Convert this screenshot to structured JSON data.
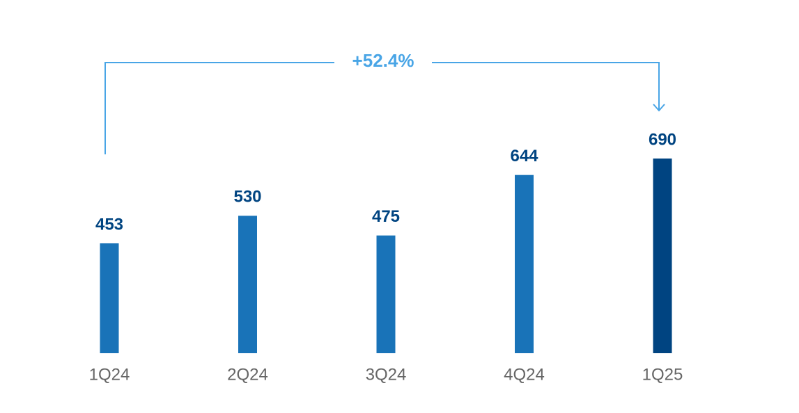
{
  "chart_data": {
    "type": "bar",
    "annotation": "+52.4%",
    "categories": [
      "1Q24",
      "2Q24",
      "3Q24",
      "4Q24",
      "1Q25"
    ],
    "values": [
      453,
      530,
      475,
      644,
      690
    ],
    "colors": [
      "#1973b8",
      "#1973b8",
      "#1973b8",
      "#1973b8",
      "#004481"
    ],
    "ylim": [
      146,
      690
    ]
  }
}
